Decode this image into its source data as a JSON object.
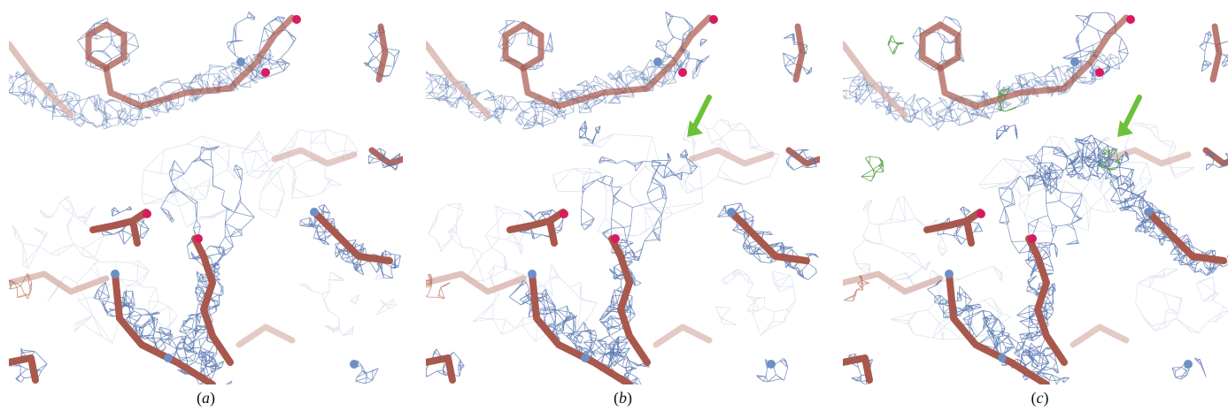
{
  "figure": {
    "panels": [
      {
        "id": "a",
        "caption_open": "(",
        "caption_letter": "a",
        "caption_close": ")",
        "has_arrow": false,
        "density_variant": "base"
      },
      {
        "id": "b",
        "caption_open": "(",
        "caption_letter": "b",
        "caption_close": ")",
        "has_arrow": true,
        "density_variant": "partial"
      },
      {
        "id": "c",
        "caption_open": "(",
        "caption_letter": "c",
        "caption_close": ")",
        "has_arrow": true,
        "density_variant": "full"
      }
    ],
    "colors": {
      "mesh_blue": "#5a78b0",
      "mesh_light": "#b9c6dd",
      "stick_brown": "#a8584d",
      "stick_light": "#d8b3ad",
      "oxygen": "#d81b60",
      "nitrogen": "#6f8fc4",
      "difference_green": "#4f9a3a",
      "arrow_green": "#6cc13a",
      "negative_red": "#b0654f"
    }
  }
}
